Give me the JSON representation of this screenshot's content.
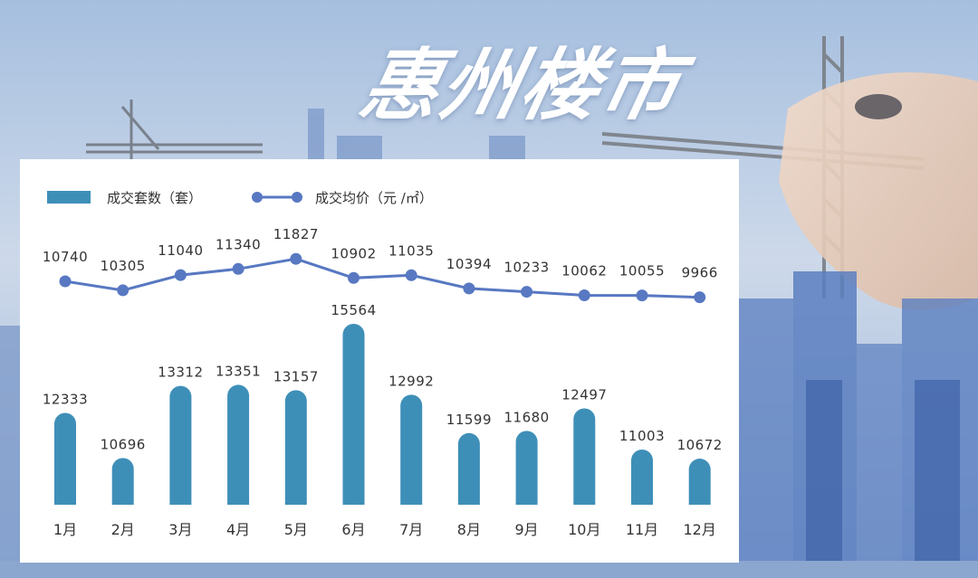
{
  "headline": "惠州楼市",
  "colors": {
    "bar": "#3e8fb8",
    "line": "#5878c2",
    "panel": "#ffffff",
    "headline": "#ffffff"
  },
  "chart_data": {
    "type": "bar+line",
    "categories": [
      "1月",
      "2月",
      "3月",
      "4月",
      "5月",
      "6月",
      "7月",
      "8月",
      "9月",
      "10月",
      "11月",
      "12月"
    ],
    "series": [
      {
        "name": "成交套数（套）",
        "type": "bar",
        "values": [
          12333,
          10696,
          13312,
          13351,
          13157,
          15564,
          12992,
          11599,
          11680,
          12497,
          11003,
          10672
        ],
        "color": "#3e8fb8"
      },
      {
        "name": "成交均价（元 /㎡）",
        "type": "line",
        "values": [
          10740,
          10305,
          11040,
          11340,
          11827,
          10902,
          11035,
          10394,
          10233,
          10062,
          10055,
          9966
        ],
        "color": "#5878c2"
      }
    ],
    "legend_position": "top-left",
    "grid": false
  }
}
